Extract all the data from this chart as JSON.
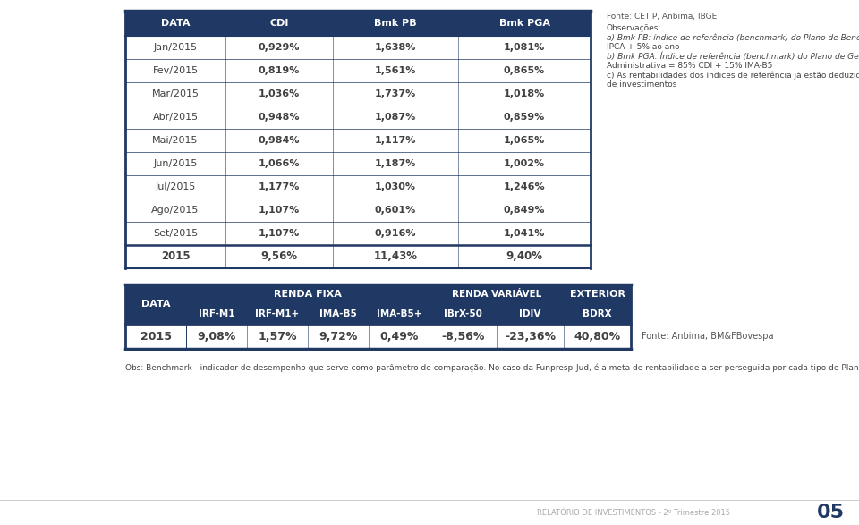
{
  "table1_headers": [
    "DATA",
    "CDI",
    "Bmk PB",
    "Bmk PGA"
  ],
  "table1_rows": [
    [
      "Jan/2015",
      "0,929%",
      "1,638%",
      "1,081%"
    ],
    [
      "Fev/2015",
      "0,819%",
      "1,561%",
      "0,865%"
    ],
    [
      "Mar/2015",
      "1,036%",
      "1,737%",
      "1,018%"
    ],
    [
      "Abr/2015",
      "0,948%",
      "1,087%",
      "0,859%"
    ],
    [
      "Mai/2015",
      "0,984%",
      "1,117%",
      "1,065%"
    ],
    [
      "Jun/2015",
      "1,066%",
      "1,187%",
      "1,002%"
    ],
    [
      "Jul/2015",
      "1,177%",
      "1,030%",
      "1,246%"
    ],
    [
      "Ago/2015",
      "1,107%",
      "0,601%",
      "0,849%"
    ],
    [
      "Set/2015",
      "1,107%",
      "0,916%",
      "1,041%"
    ],
    [
      "2015",
      "9,56%",
      "11,43%",
      "9,40%"
    ]
  ],
  "table2_subheaders": [
    "IRF-M1",
    "IRF-M1+",
    "IMA-B5",
    "IMA-B5+",
    "IBrX-50",
    "IDIV",
    "BDRX"
  ],
  "table2_data_label": "2015",
  "table2_data_values": [
    "9,08%",
    "1,57%",
    "9,72%",
    "0,49%",
    "-8,56%",
    "-23,36%",
    "40,80%"
  ],
  "fonte_table1": "Fonte: CETIP, Anbima, IBGE",
  "obs_lines": [
    "Observações:",
    "a) Bmk PB: índice de referência (benchmark) do Plano de Benefícios =",
    "IPCA + 5% ao ano",
    "b) Bmk PGA: Índice de referência (benchmark) do Plano de Gestão",
    "Administrativa = 85% CDI + 15% IMA-B5",
    "c) As rentabilidades dos índices de referência já estão deduzidas dos custos",
    "de investimentos"
  ],
  "fonte_table2": "Fonte: Anbima, BM&FBovespa",
  "obs_bottom": "Obs: Benchmark - indicador de desempenho que serve como parâmetro de comparação. No caso da Funpresp-Jud, é a meta de rentabilidade a ser perseguida por cada tipo de Plano (PB ou PGA).",
  "footer_text": "RELATÓRIO DE INVESTIMENTOS - 2º Trimestre 2015",
  "footer_page": "05",
  "header_color": "#1f3864",
  "header_text_color": "#ffffff",
  "border_color": "#1f3864",
  "table_text_color": "#404040"
}
